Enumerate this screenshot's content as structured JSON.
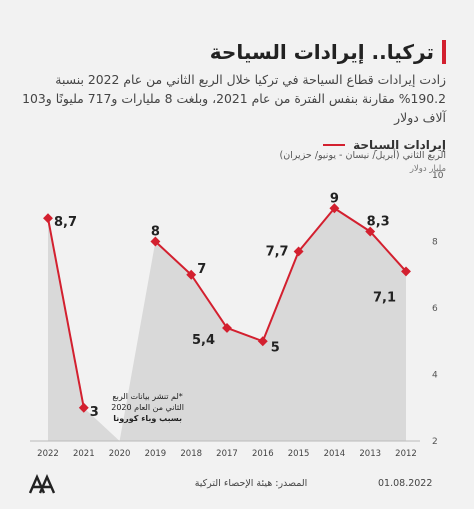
{
  "title": "تركيا.. إيرادات السياحة",
  "subtitle": "زادت إيرادات قطاع السياحة في تركيا خلال الربع الثاني من عام 2022 بنسبة 190.2% مقارنة بنفس الفترة من عام 2021، وبلغت 8 مليارات و717 مليونًا و103 آلاف دولار",
  "legend_label": "إيرادات السياحة",
  "period_note": "الربع الثاني (أبريل/ نيسان - يونيو/ حزيران)",
  "unit_label": "مليار دولار",
  "footnote": [
    "*لم تنشر بيانات الربع",
    "الثاني من العام 2020",
    "بسبب وباء كورونا"
  ],
  "footer": {
    "source": "المصدر: هيئة الإحصاء التركية",
    "date": "01.08.2022"
  },
  "colors": {
    "line": "#d3202f",
    "area": "#d9d9d9",
    "background": "#f2f2f2"
  },
  "chart_data": {
    "type": "line",
    "categories": [
      "2022",
      "2021",
      "2020",
      "2019",
      "2018",
      "2017",
      "2016",
      "2015",
      "2014",
      "2013",
      "2012"
    ],
    "values": [
      8.7,
      3,
      null,
      8,
      7,
      5.4,
      5,
      7.7,
      9,
      8.3,
      7.1
    ],
    "data_labels": [
      "8,7",
      "3",
      "",
      "8",
      "7",
      "5,4",
      "5",
      "7,7",
      "9",
      "8,3",
      "7,1"
    ],
    "y_ticks": [
      "2",
      "4",
      "6",
      "8",
      "10"
    ],
    "ylim": [
      2,
      10
    ],
    "grid": false,
    "legend_position": "top-right"
  }
}
